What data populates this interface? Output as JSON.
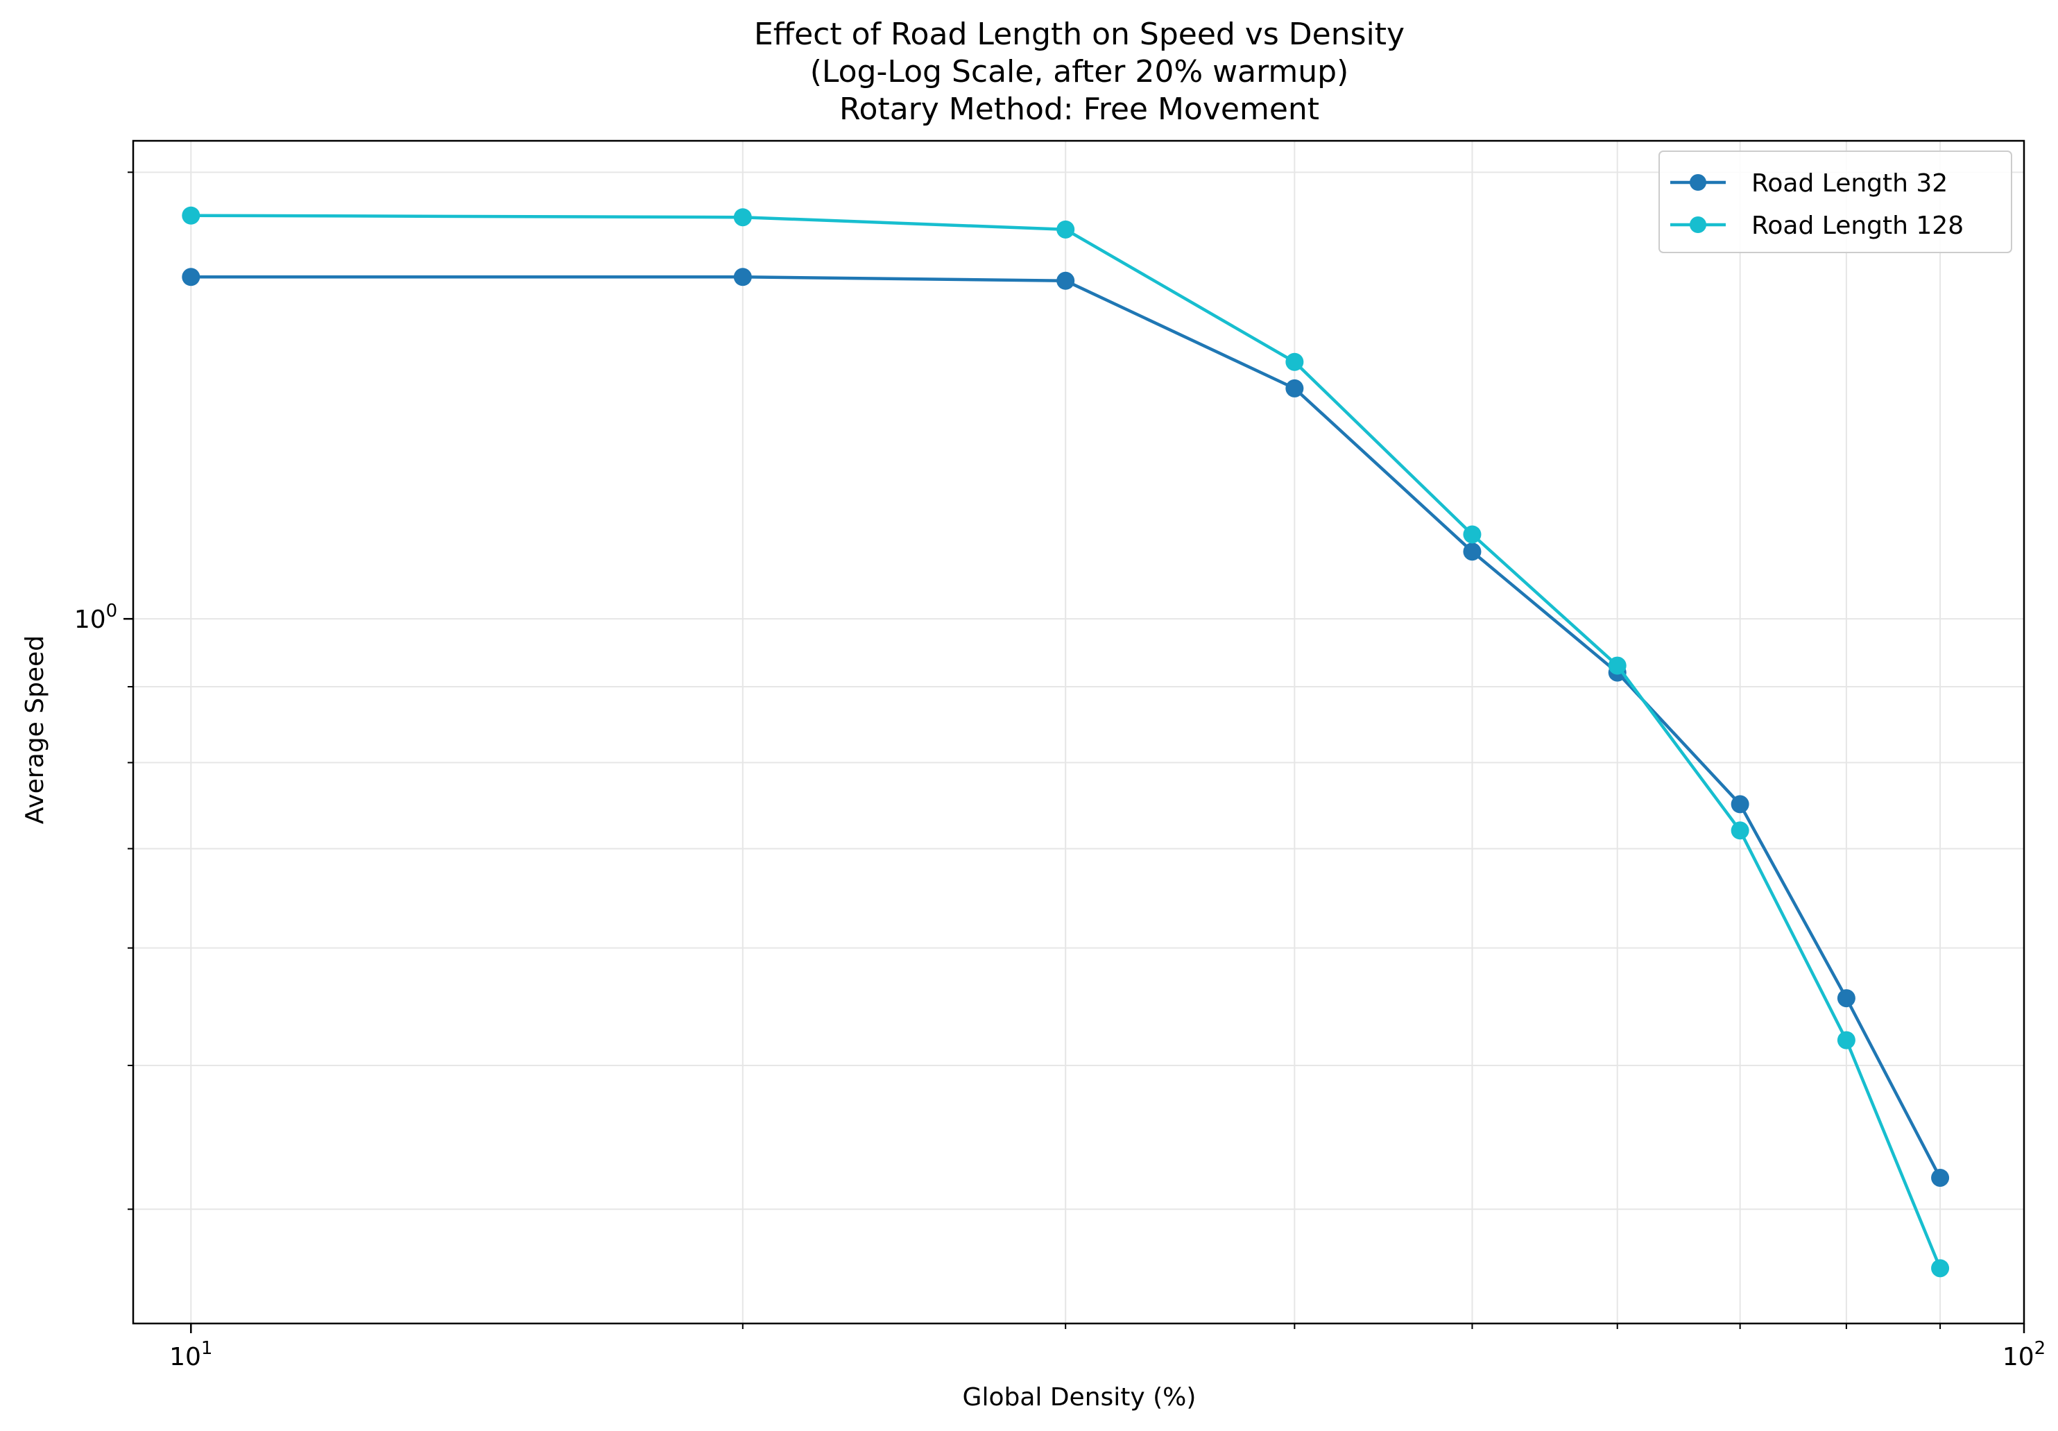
{
  "chart_data": {
    "type": "line",
    "title_lines": [
      "Effect of Road Length on Speed vs Density",
      "(Log-Log Scale, after 20% warmup)",
      "Rotary Method: Free Movement"
    ],
    "xlabel": "Global Density (%)",
    "ylabel": "Average Speed",
    "xscale": "log",
    "yscale": "log",
    "xlim": [
      9.3,
      100
    ],
    "ylim": [
      0.335,
      2.1
    ],
    "grid": true,
    "legend_position": "top-right",
    "x_major_ticks": [
      {
        "value": 10,
        "base": "10",
        "exp": "1"
      },
      {
        "value": 100,
        "base": "10",
        "exp": "2"
      }
    ],
    "y_major_ticks": [
      {
        "value": 1,
        "base": "10",
        "exp": "0"
      }
    ],
    "x_minor_ticks": [
      20,
      30,
      40,
      50,
      60,
      70,
      80,
      90
    ],
    "y_minor_ticks": [
      0.4,
      0.5,
      0.6,
      0.7,
      0.8,
      0.9,
      2.0
    ],
    "x": [
      10,
      20,
      30,
      40,
      50,
      60,
      70,
      80,
      90
    ],
    "series": [
      {
        "name": "Road Length 32",
        "color": "#1f77b4",
        "values": [
          1.7,
          1.7,
          1.69,
          1.43,
          1.11,
          0.92,
          0.75,
          0.555,
          0.42
        ]
      },
      {
        "name": "Road Length 128",
        "color": "#17becf",
        "values": [
          1.87,
          1.865,
          1.83,
          1.49,
          1.14,
          0.93,
          0.72,
          0.52,
          0.365
        ]
      }
    ]
  }
}
